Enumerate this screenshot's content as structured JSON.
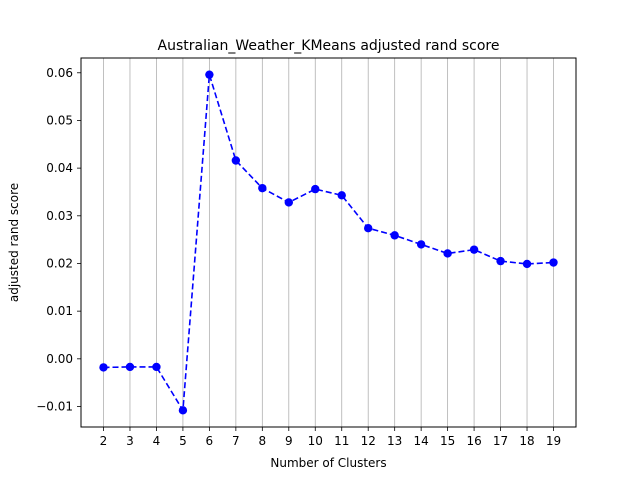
{
  "chart_data": {
    "type": "line",
    "title": "Australian_Weather_KMeans adjusted rand score",
    "xlabel": "Number of Clusters",
    "ylabel": "adjusted rand score",
    "x": [
      2,
      3,
      4,
      5,
      6,
      7,
      8,
      9,
      10,
      11,
      12,
      13,
      14,
      15,
      16,
      17,
      18,
      19
    ],
    "series": [
      {
        "values": [
          -0.0018,
          -0.0017,
          -0.0017,
          -0.0108,
          0.0596,
          0.0416,
          0.0358,
          0.0328,
          0.0356,
          0.0343,
          0.0274,
          0.0259,
          0.024,
          0.0221,
          0.0229,
          0.0205,
          0.0199,
          0.0202
        ],
        "color": "#0000ff",
        "line_style": "dashed",
        "marker": "circle"
      }
    ],
    "xlim": [
      1.15,
      19.85
    ],
    "ylim": [
      -0.0143,
      0.0631
    ],
    "yticks": [
      -0.01,
      0.0,
      0.01,
      0.02,
      0.03,
      0.04,
      0.05,
      0.06
    ],
    "ytick_labels": [
      "−0.01",
      "0.00",
      "0.01",
      "0.02",
      "0.03",
      "0.04",
      "0.05",
      "0.06"
    ],
    "xticks": [
      2,
      3,
      4,
      5,
      6,
      7,
      8,
      9,
      10,
      11,
      12,
      13,
      14,
      15,
      16,
      17,
      18,
      19
    ],
    "xtick_labels": [
      "2",
      "3",
      "4",
      "5",
      "6",
      "7",
      "8",
      "9",
      "10",
      "11",
      "12",
      "13",
      "14",
      "15",
      "16",
      "17",
      "18",
      "19"
    ],
    "grid": "vertical",
    "legend": "none"
  }
}
